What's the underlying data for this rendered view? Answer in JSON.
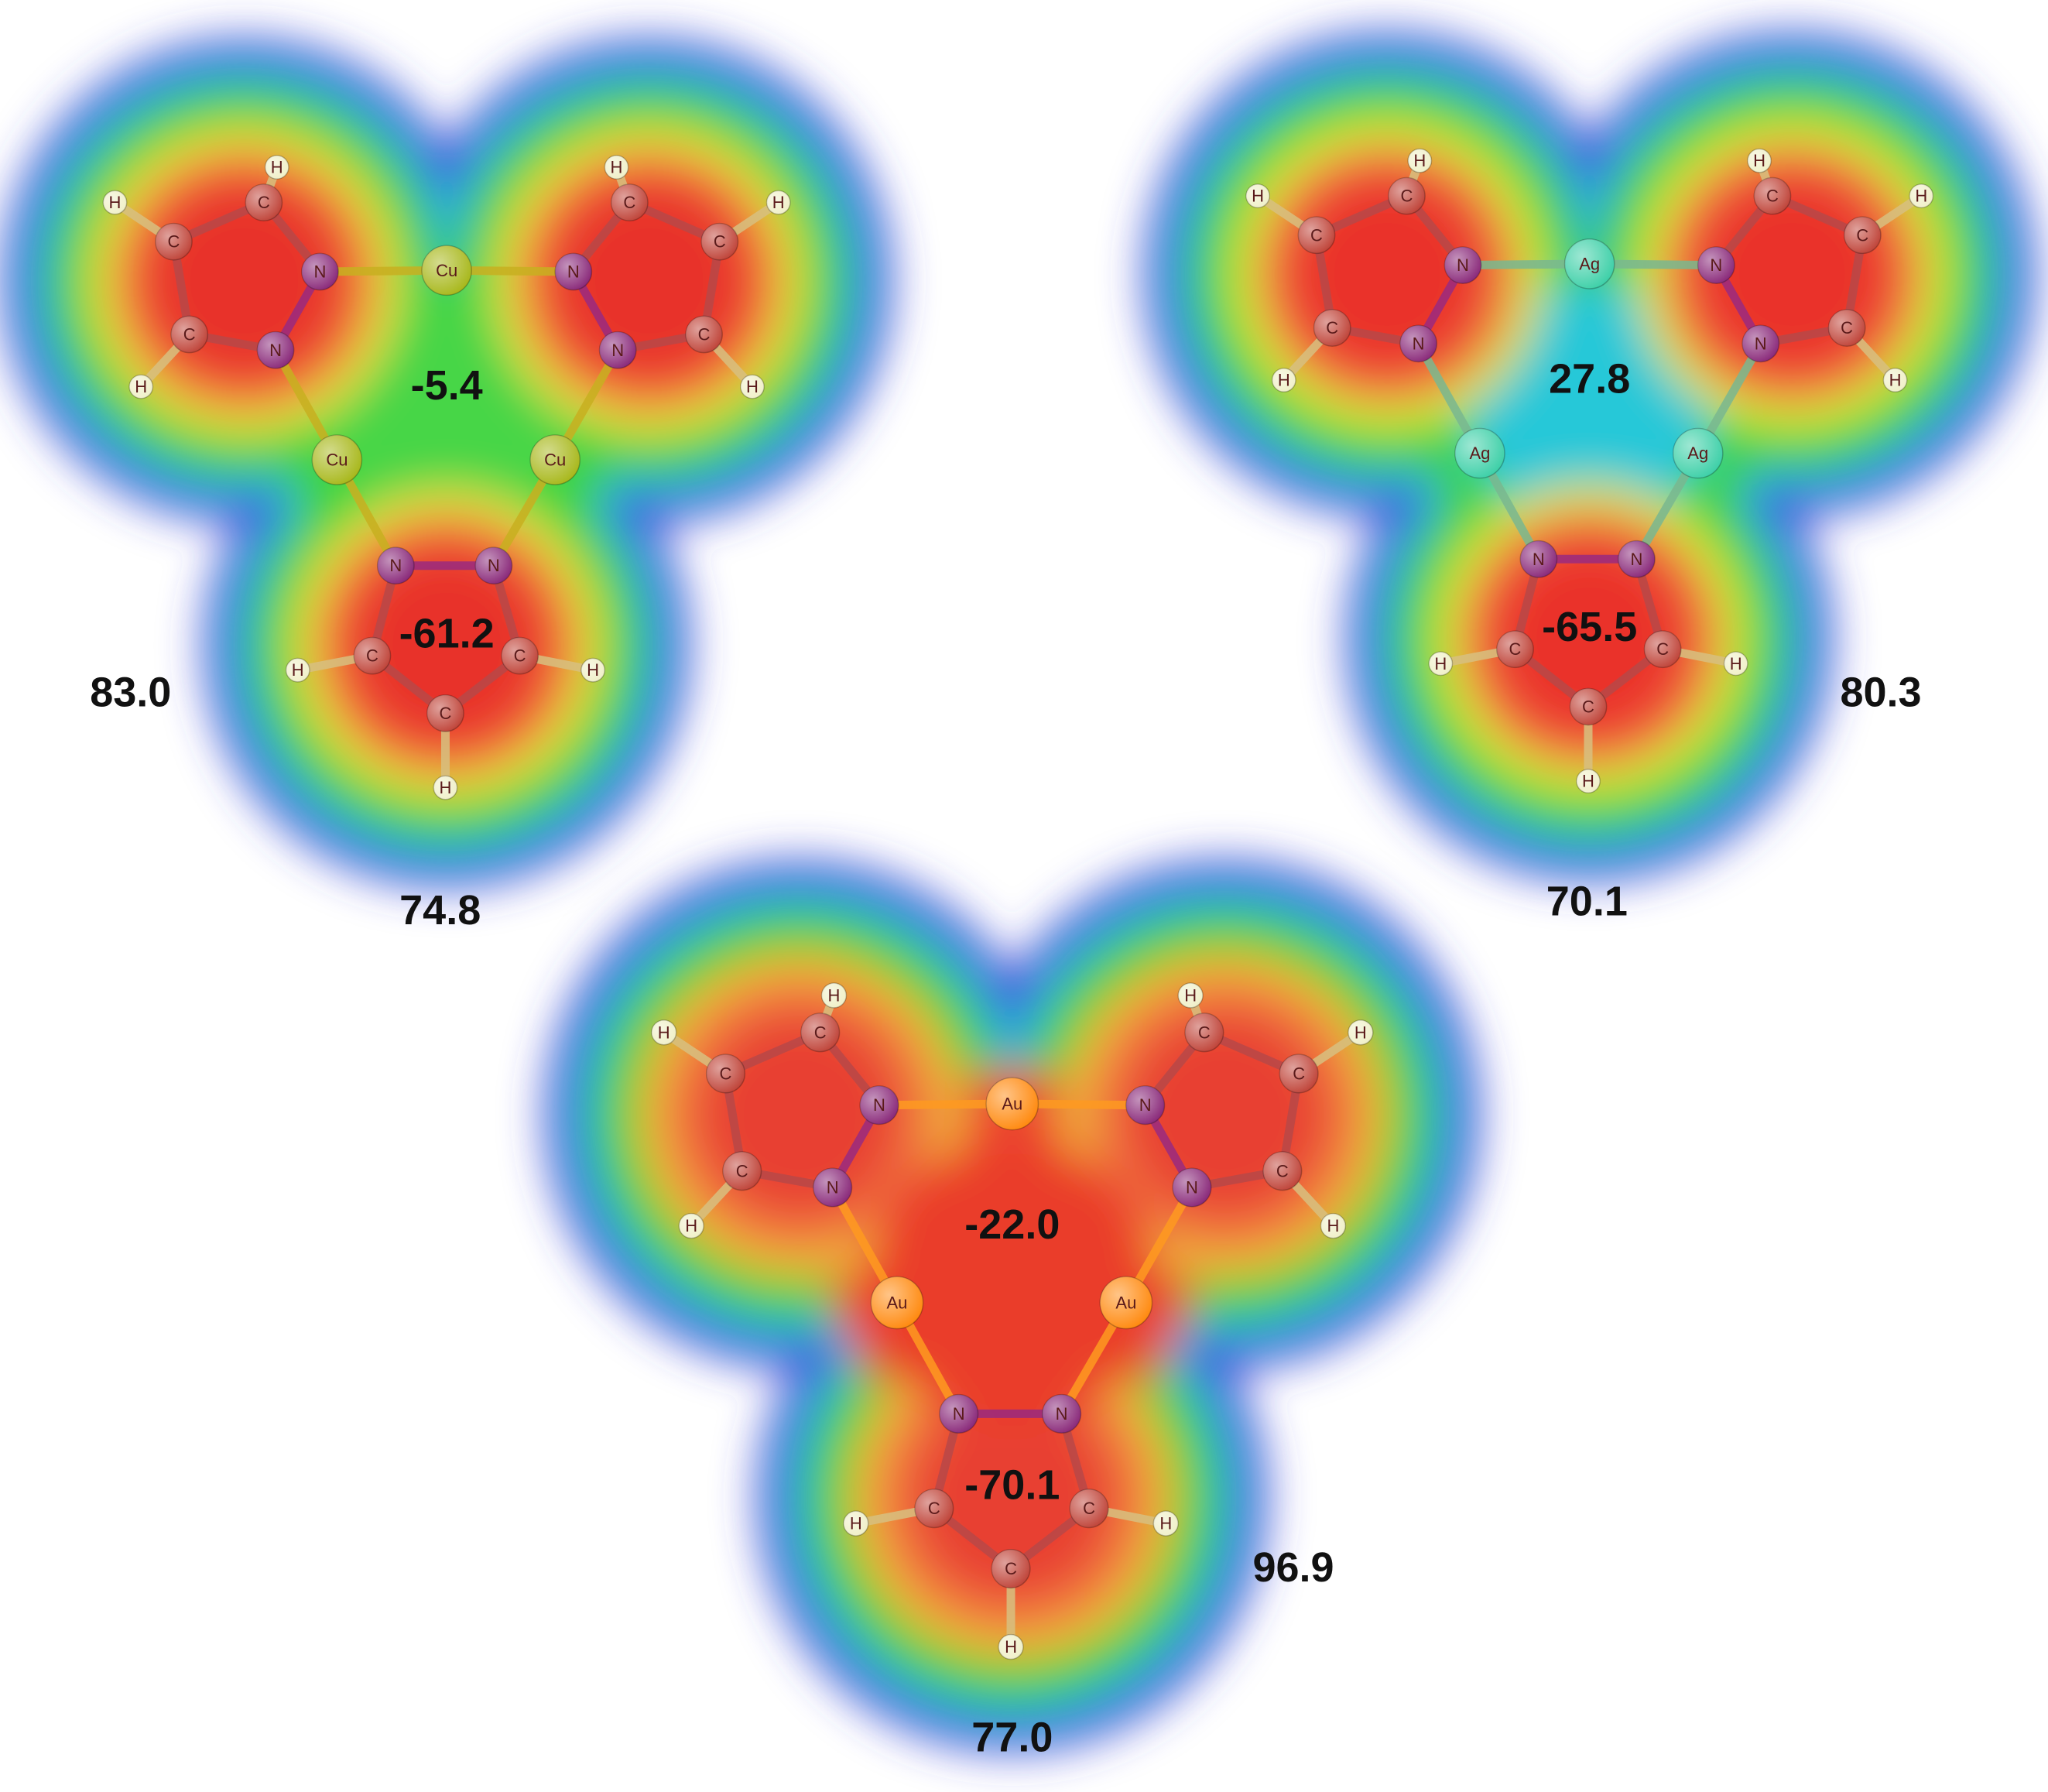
{
  "figure": {
    "molecules": [
      {
        "metals": [
          "Cu",
          "Cu",
          "Cu"
        ],
        "rings": [
          {
            "atoms": [
              "N",
              "N",
              "C",
              "C",
              "C"
            ],
            "hydrogens": [
              "H",
              "H",
              "H"
            ]
          },
          {
            "atoms": [
              "N",
              "N",
              "C",
              "C",
              "C"
            ],
            "hydrogens": [
              "H",
              "H",
              "H"
            ]
          },
          {
            "atoms": [
              "N",
              "N",
              "C",
              "C",
              "C"
            ],
            "hydrogens": [
              "H",
              "H",
              "H"
            ]
          }
        ],
        "center_value": "-5.4",
        "ring_value": "-61.2",
        "side_value": "83.0",
        "bottom_value": "74.8"
      },
      {
        "metals": [
          "Ag",
          "Ag",
          "Ag"
        ],
        "rings": [
          {
            "atoms": [
              "N",
              "N",
              "C",
              "C",
              "C"
            ],
            "hydrogens": [
              "H",
              "H",
              "H"
            ]
          },
          {
            "atoms": [
              "N",
              "N",
              "C",
              "C",
              "C"
            ],
            "hydrogens": [
              "H",
              "H",
              "H"
            ]
          },
          {
            "atoms": [
              "N",
              "N",
              "C",
              "C",
              "C"
            ],
            "hydrogens": [
              "H",
              "H",
              "H"
            ]
          }
        ],
        "center_value": "27.8",
        "ring_value": "-65.5",
        "side_value": "80.3",
        "bottom_value": "70.1"
      },
      {
        "metals": [
          "Au",
          "Au",
          "Au"
        ],
        "rings": [
          {
            "atoms": [
              "N",
              "N",
              "C",
              "C",
              "C"
            ],
            "hydrogens": [
              "H",
              "H",
              "H"
            ]
          },
          {
            "atoms": [
              "N",
              "N",
              "C",
              "C",
              "C"
            ],
            "hydrogens": [
              "H",
              "H",
              "H"
            ]
          },
          {
            "atoms": [
              "N",
              "N",
              "C",
              "C",
              "C"
            ],
            "hydrogens": [
              "H",
              "H",
              "H"
            ]
          }
        ],
        "center_value": "-22.0",
        "ring_value": "-70.1",
        "side_value": "96.9",
        "bottom_value": "77.0"
      }
    ]
  }
}
